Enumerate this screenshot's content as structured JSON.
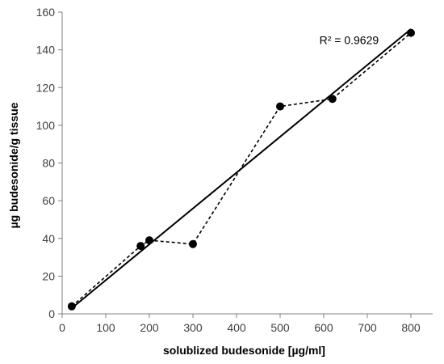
{
  "chart_data": {
    "type": "scatter",
    "xlabel": "solublized budesonide [µg/ml]",
    "ylabel": "µg budesonide/g tissue",
    "xlim": [
      0,
      850
    ],
    "ylim": [
      0,
      160
    ],
    "x_ticks": [
      0,
      100,
      200,
      300,
      400,
      500,
      600,
      700,
      800
    ],
    "y_ticks": [
      0,
      20,
      40,
      60,
      80,
      100,
      120,
      140,
      160
    ],
    "grid": false,
    "legend": "none",
    "series": [
      {
        "x": [
          22,
          180,
          200,
          300,
          500,
          620,
          800
        ],
        "y": [
          4,
          36,
          39,
          37,
          110,
          114,
          149
        ],
        "marker": "filled-circle",
        "line": "dashed",
        "color": "#000000"
      }
    ],
    "trendline": {
      "type": "linear",
      "x": [
        22,
        800
      ],
      "y": [
        3,
        151
      ],
      "color": "#000000"
    },
    "annotations": [
      {
        "text": "R² = 0.9629",
        "x": 590,
        "y": 143
      }
    ]
  }
}
